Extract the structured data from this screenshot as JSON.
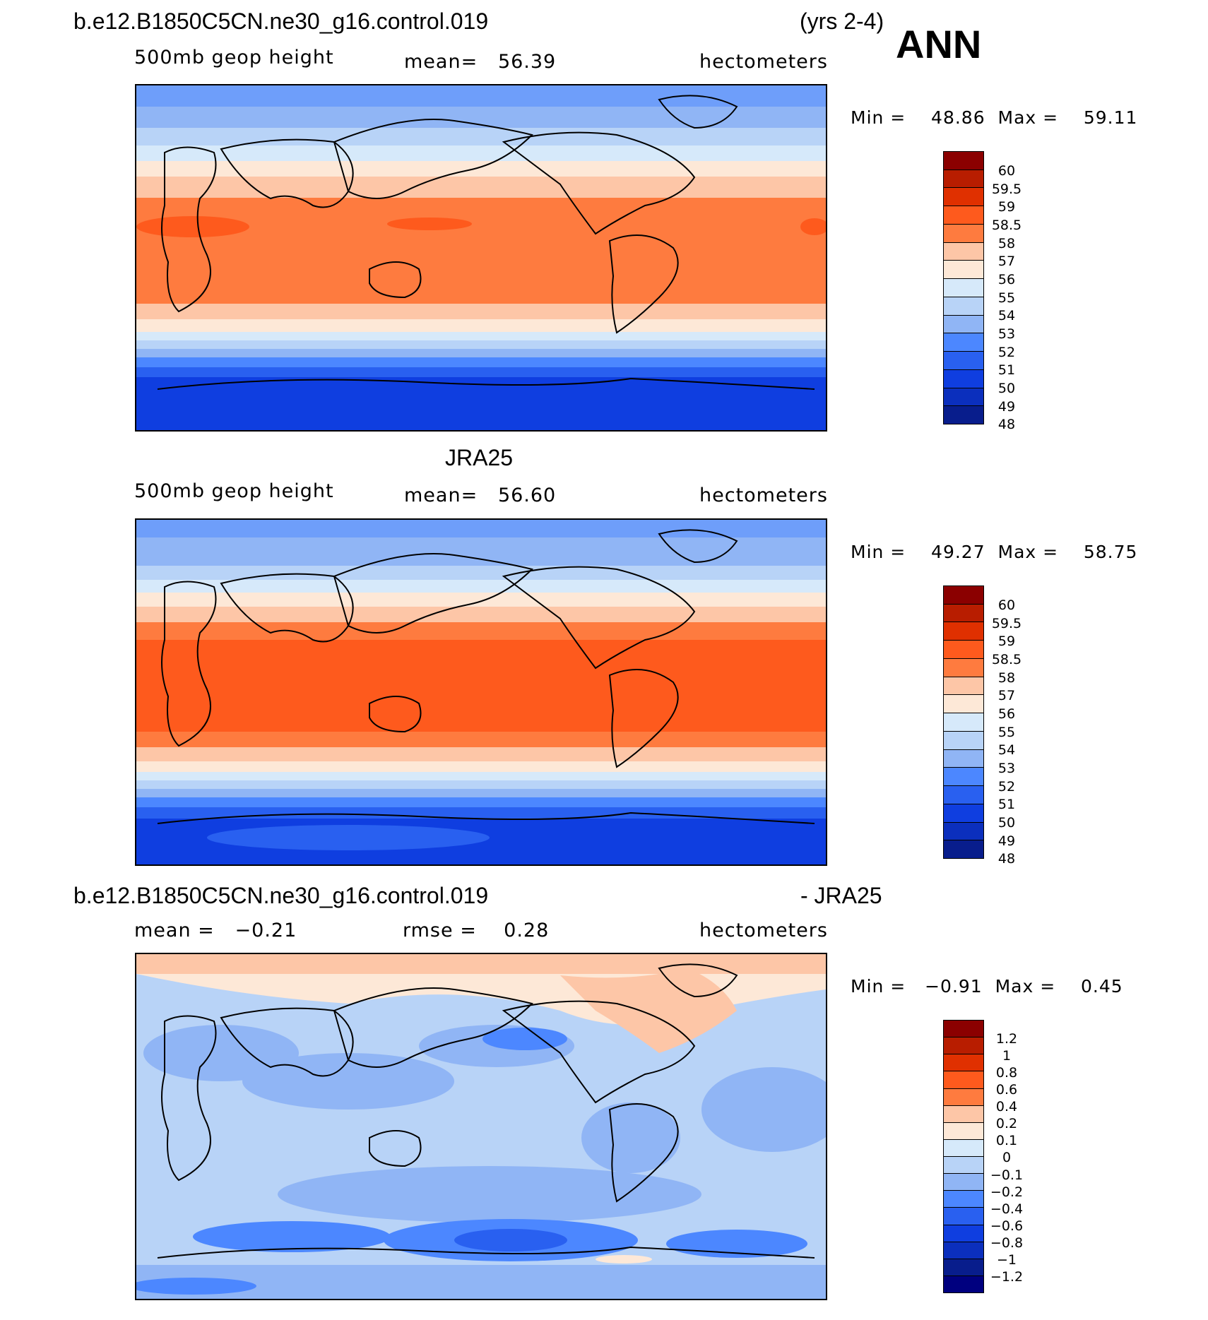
{
  "header": {
    "case_name": "b.e12.B1850C5CN.ne30_g16.control.019",
    "years": "(yrs 2-4)",
    "season": "ANN"
  },
  "panels": [
    {
      "title": "",
      "variable": "500mb geop height",
      "stat1": "mean=   56.39",
      "stat2": "",
      "units": "hectometers",
      "minmax": "Min =    48.86  Max =    59.11",
      "field_type": "absolute",
      "colorbar": {
        "colors": [
          "#8b0000",
          "#b81d00",
          "#e03000",
          "#fe5a1d",
          "#fe7b3f",
          "#fdc6a7",
          "#fde8d7",
          "#d6e9fa",
          "#b8d3f7",
          "#90b5f5",
          "#4c87ff",
          "#2960f0",
          "#0f3ee0",
          "#0b2fbd",
          "#081d8c"
        ],
        "labels": [
          "60",
          "59.5",
          "59",
          "58.5",
          "58",
          "57",
          "56",
          "55",
          "54",
          "53",
          "52",
          "51",
          "50",
          "49",
          "48"
        ]
      }
    },
    {
      "title": "JRA25",
      "variable": "500mb geop height",
      "stat1": "mean=   56.60",
      "stat2": "",
      "units": "hectometers",
      "minmax": "Min =    49.27  Max =    58.75",
      "field_type": "absolute",
      "colorbar": {
        "colors": [
          "#8b0000",
          "#b81d00",
          "#e03000",
          "#fe5a1d",
          "#fe7b3f",
          "#fdc6a7",
          "#fde8d7",
          "#d6e9fa",
          "#b8d3f7",
          "#90b5f5",
          "#4c87ff",
          "#2960f0",
          "#0f3ee0",
          "#0b2fbd",
          "#081d8c"
        ],
        "labels": [
          "60",
          "59.5",
          "59",
          "58.5",
          "58",
          "57",
          "56",
          "55",
          "54",
          "53",
          "52",
          "51",
          "50",
          "49",
          "48"
        ]
      }
    },
    {
      "title_left": "b.e12.B1850C5CN.ne30_g16.control.019",
      "title_right": "- JRA25",
      "variable": "",
      "stat1": "mean =   −0.21",
      "stat2": "rmse =    0.28",
      "units": "hectometers",
      "minmax": "Min =   −0.91  Max =    0.45",
      "field_type": "difference",
      "colorbar": {
        "colors": [
          "#8b0000",
          "#b81d00",
          "#e03000",
          "#fe5a1d",
          "#fe7b3f",
          "#fdc6a7",
          "#fde8d7",
          "#d6e9fa",
          "#b8d3f7",
          "#90b5f5",
          "#4c87ff",
          "#2960f0",
          "#0f3ee0",
          "#0b2fbd",
          "#081d8c",
          "#00007f"
        ],
        "labels": [
          "1.2",
          "1",
          "0.8",
          "0.6",
          "0.4",
          "0.2",
          "0.1",
          "0",
          "−0.1",
          "−0.2",
          "−0.4",
          "−0.6",
          "−0.8",
          "−1",
          "−1.2"
        ]
      }
    }
  ]
}
